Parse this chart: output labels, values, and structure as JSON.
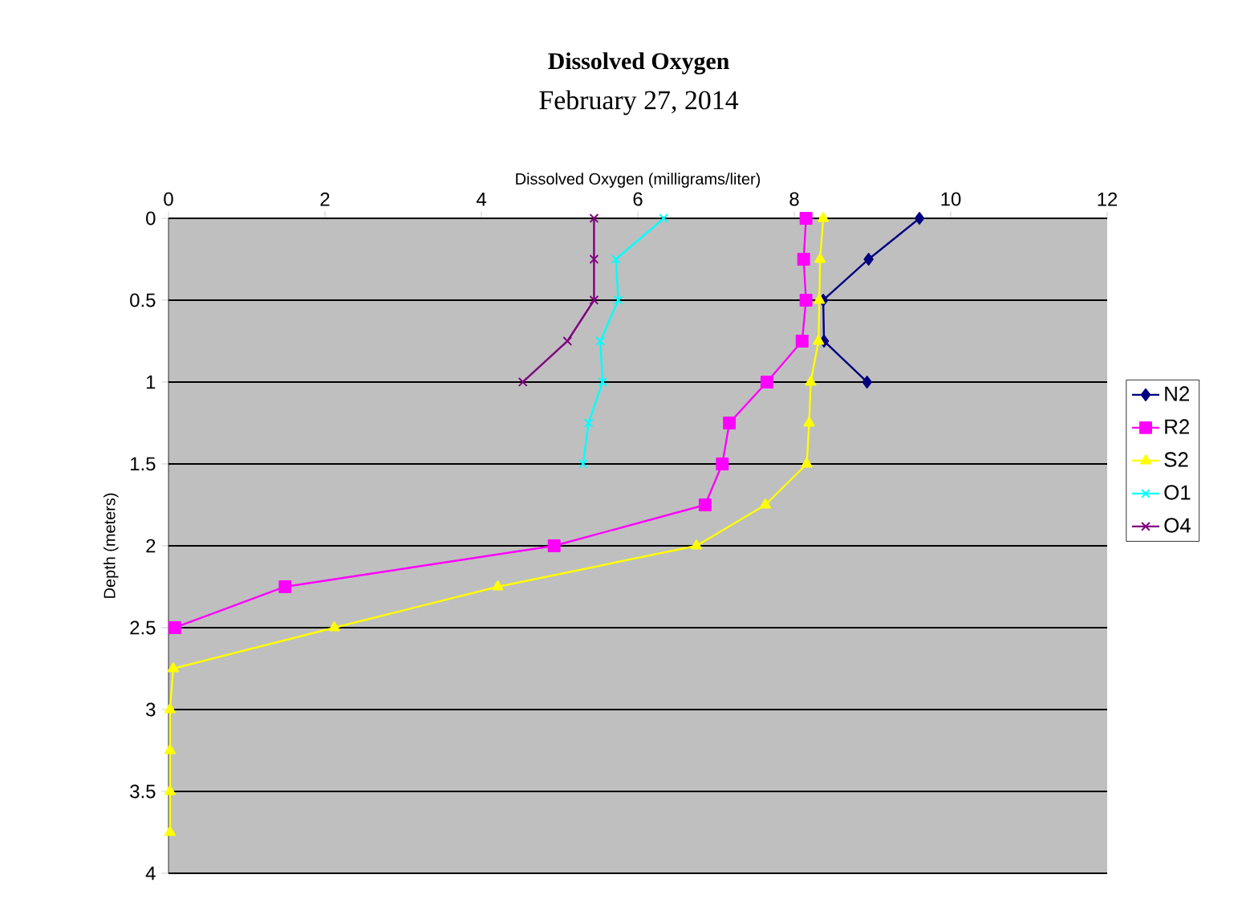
{
  "chart_data": {
    "type": "line",
    "title": "Dissolved Oxygen",
    "subtitle": "February 27, 2014",
    "xlabel": "Dissolved Oxygen (milligrams/liter)",
    "ylabel": "Depth (meters)",
    "xlim": [
      0,
      12
    ],
    "xticks": [
      0,
      2,
      4,
      6,
      8,
      10,
      12
    ],
    "ylim": [
      4,
      0
    ],
    "yticks": [
      0,
      0.5,
      1,
      1.5,
      2,
      2.5,
      3,
      3.5,
      4
    ],
    "grid": "y",
    "legend": "right",
    "line_style": "solid",
    "series": [
      {
        "name": "N2",
        "color": "#000080",
        "marker": "diamond",
        "x": [
          9.6,
          8.95,
          8.37,
          8.38,
          8.93
        ],
        "values": [
          0,
          0.25,
          0.5,
          0.75,
          1
        ]
      },
      {
        "name": "R2",
        "color": "#ff00ff",
        "marker": "square",
        "x": [
          8.15,
          8.12,
          8.15,
          8.1,
          7.65,
          7.17,
          7.08,
          6.86,
          4.93,
          1.49,
          0.08
        ],
        "values": [
          0,
          0.25,
          0.5,
          0.75,
          1,
          1.25,
          1.5,
          1.75,
          2,
          2.25,
          2.5
        ]
      },
      {
        "name": "S2",
        "color": "#ffff00",
        "marker": "triangle",
        "x": [
          8.37,
          8.33,
          8.32,
          8.31,
          8.21,
          8.19,
          8.16,
          7.63,
          6.75,
          4.21,
          2.12,
          0.06,
          0.02,
          0.02,
          0.02,
          0.02
        ],
        "values": [
          0,
          0.25,
          0.5,
          0.75,
          1,
          1.25,
          1.5,
          1.75,
          2,
          2.25,
          2.5,
          2.75,
          3,
          3.25,
          3.5,
          3.75
        ]
      },
      {
        "name": "O1",
        "color": "#00ffff",
        "marker": "cross",
        "x": [
          6.33,
          5.72,
          5.75,
          5.52,
          5.55,
          5.37,
          5.3
        ],
        "values": [
          0,
          0.25,
          0.5,
          0.75,
          1,
          1.25,
          1.5
        ]
      },
      {
        "name": "O4",
        "color": "#800080",
        "marker": "cross",
        "x": [
          5.44,
          5.44,
          5.44,
          5.1,
          4.53
        ],
        "values": [
          0,
          0.25,
          0.5,
          0.75,
          1
        ]
      }
    ]
  }
}
